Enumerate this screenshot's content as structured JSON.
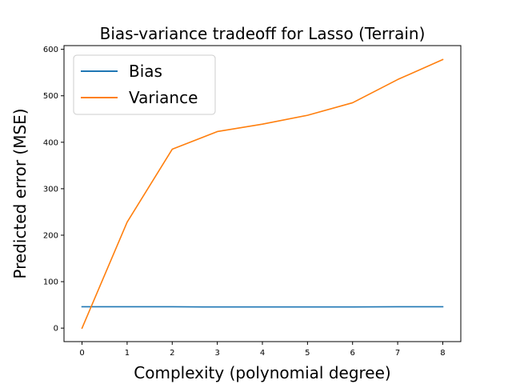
{
  "chart_data": {
    "type": "line",
    "title": "Bias-variance tradeoff for Lasso (Terrain)",
    "xlabel": "Complexity (polynomial degree)",
    "ylabel": "Predicted error (MSE)",
    "x": [
      0,
      1,
      2,
      3,
      4,
      5,
      6,
      7,
      8
    ],
    "xlim": [
      -0.4,
      8.4
    ],
    "ylim": [
      -29,
      608
    ],
    "xticks": [
      0,
      1,
      2,
      3,
      4,
      5,
      6,
      7,
      8
    ],
    "yticks": [
      0,
      100,
      200,
      300,
      400,
      500,
      600
    ],
    "grid": false,
    "legend_position": "top-left",
    "series": [
      {
        "name": "Bias",
        "color": "#1f77b4",
        "values": [
          46,
          46,
          46,
          45.5,
          45.5,
          45.5,
          45.5,
          46,
          46
        ]
      },
      {
        "name": "Variance",
        "color": "#ff7f0e",
        "values": [
          0,
          228,
          385,
          423,
          439,
          458,
          485,
          535,
          578
        ]
      }
    ]
  }
}
